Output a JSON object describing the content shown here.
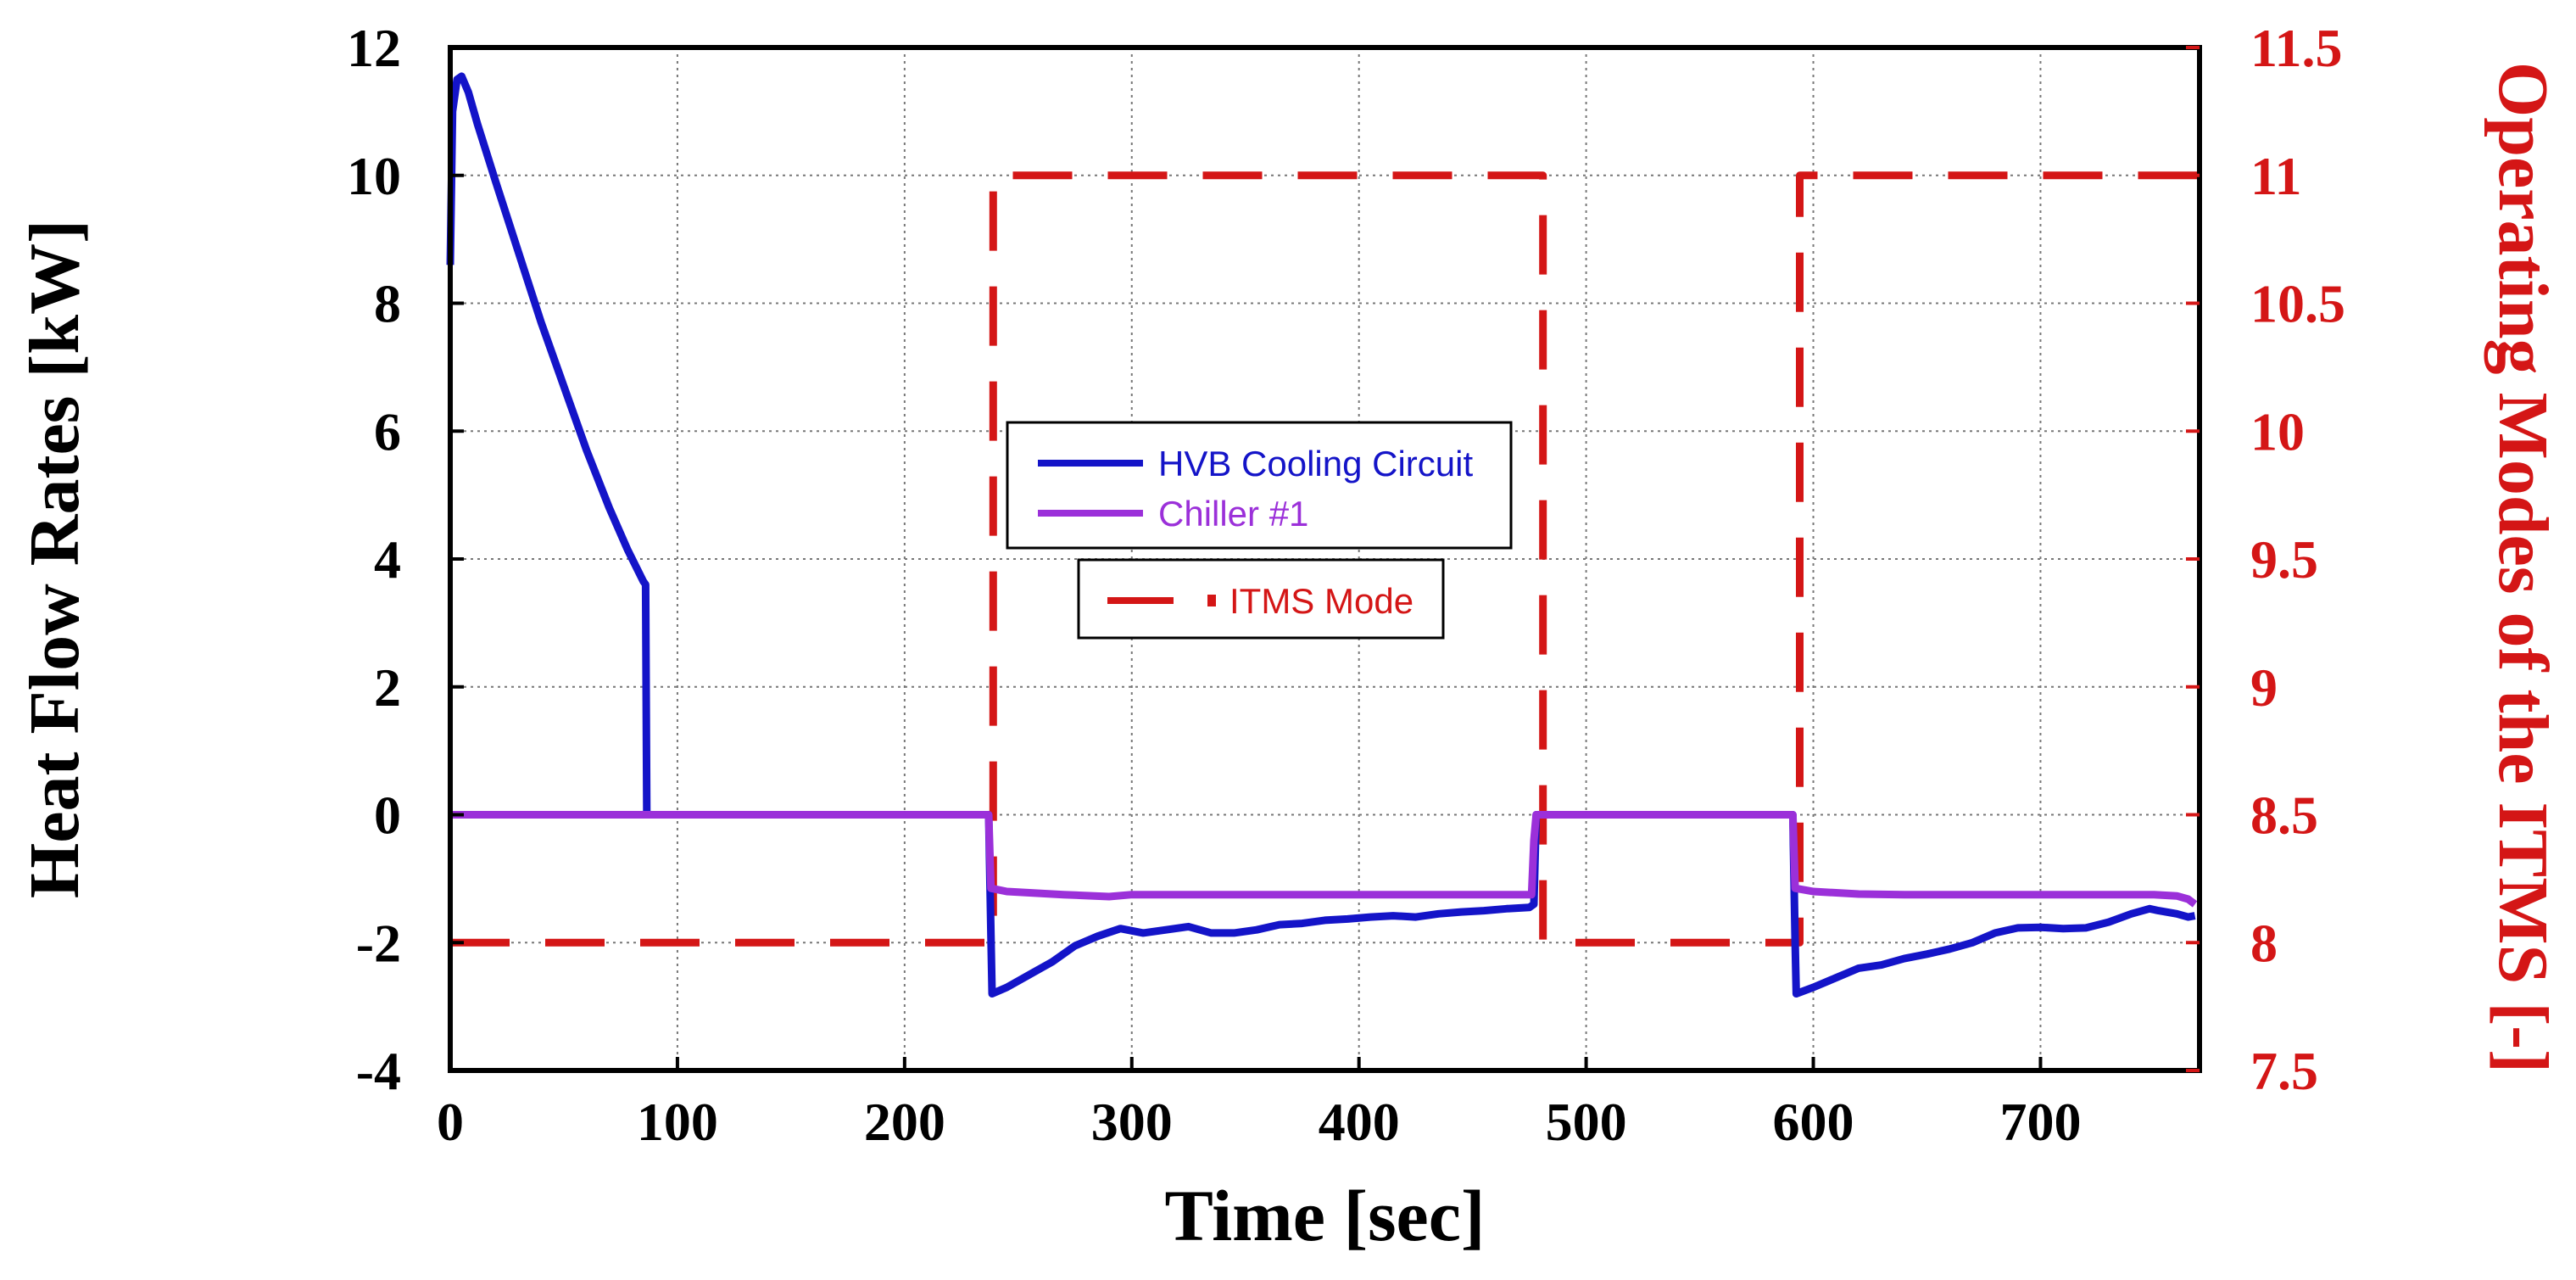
{
  "chart_data": {
    "type": "line",
    "xlabel": "Time [sec]",
    "ylabel": "Heat Flow Rates [kW]",
    "y2label": "Operating Modes of the ITMS [-]",
    "xlim": [
      0,
      770
    ],
    "ylim": [
      -4,
      12
    ],
    "y2lim": [
      7.5,
      11.5
    ],
    "xticks": [
      0,
      100,
      200,
      300,
      400,
      500,
      600,
      700
    ],
    "yticks": [
      -4,
      -2,
      0,
      2,
      4,
      6,
      8,
      10,
      12
    ],
    "y2ticks": [
      7.5,
      8,
      8.5,
      9,
      9.5,
      10,
      10.5,
      11,
      11.5
    ],
    "xtick_labels": [
      "0",
      "100",
      "200",
      "300",
      "400",
      "500",
      "600",
      "700"
    ],
    "ytick_labels": [
      "-4",
      "-2",
      "0",
      "2",
      "4",
      "6",
      "8",
      "10",
      "12"
    ],
    "y2tick_labels": [
      "7.5",
      "8",
      "8.5",
      "9",
      "9.5",
      "10",
      "10.5",
      "11",
      "11.5"
    ],
    "grid": true,
    "series": [
      {
        "name": "HVB Cooling Circuit",
        "axis": "left",
        "color": "#1414c8",
        "style": "solid",
        "x": [
          0,
          1,
          3,
          5,
          8,
          12,
          20,
          30,
          40,
          50,
          60,
          70,
          78,
          85,
          86,
          86.5,
          237,
          238,
          238.5,
          245,
          255,
          265,
          275,
          285,
          295,
          305,
          315,
          325,
          335,
          345,
          355,
          365,
          375,
          385,
          395,
          405,
          415,
          425,
          435,
          445,
          455,
          465,
          475,
          477,
          478,
          591,
          592,
          592.5,
          600,
          610,
          620,
          630,
          640,
          650,
          660,
          670,
          680,
          690,
          700,
          710,
          720,
          730,
          740,
          748,
          752,
          760,
          765,
          768
        ],
        "y": [
          8.6,
          11.0,
          11.5,
          11.55,
          11.3,
          10.8,
          9.9,
          8.8,
          7.7,
          6.7,
          5.7,
          4.8,
          4.15,
          3.65,
          3.6,
          0,
          0,
          -1.9,
          -2.8,
          -2.7,
          -2.5,
          -2.3,
          -2.05,
          -1.9,
          -1.78,
          -1.85,
          -1.8,
          -1.75,
          -1.85,
          -1.85,
          -1.8,
          -1.72,
          -1.7,
          -1.65,
          -1.63,
          -1.6,
          -1.58,
          -1.6,
          -1.55,
          -1.52,
          -1.5,
          -1.47,
          -1.45,
          -1.4,
          0,
          0,
          -2.0,
          -2.8,
          -2.7,
          -2.55,
          -2.4,
          -2.35,
          -2.25,
          -2.18,
          -2.1,
          -2.0,
          -1.85,
          -1.77,
          -1.76,
          -1.78,
          -1.77,
          -1.68,
          -1.55,
          -1.47,
          -1.5,
          -1.55,
          -1.6,
          -1.58
        ]
      },
      {
        "name": "Chiller #1",
        "axis": "left",
        "color": "#9b30d9",
        "style": "solid",
        "x": [
          0,
          237,
          238,
          245,
          255,
          270,
          290,
          300,
          476,
          477,
          478,
          591,
          592,
          600,
          620,
          640,
          700,
          750,
          760,
          765,
          768
        ],
        "y": [
          0,
          0,
          -1.15,
          -1.2,
          -1.22,
          -1.25,
          -1.28,
          -1.25,
          -1.25,
          -0.4,
          0,
          0,
          -1.15,
          -1.2,
          -1.24,
          -1.25,
          -1.25,
          -1.25,
          -1.27,
          -1.32,
          -1.4
        ]
      },
      {
        "name": "ITMS Mode",
        "axis": "right",
        "color": "#d41616",
        "style": "dashed",
        "x": [
          0,
          239,
          239,
          481,
          481,
          594,
          594,
          770
        ],
        "y": [
          8,
          8,
          11,
          11,
          8,
          8,
          11,
          11
        ]
      }
    ],
    "legend": [
      {
        "label": "HVB Cooling Circuit",
        "color": "#1414c8"
      },
      {
        "label": "Chiller #1",
        "color": "#9b30d9"
      },
      {
        "label": "ITMS Mode",
        "color": "#d41616"
      }
    ],
    "legend_placement": "center"
  }
}
